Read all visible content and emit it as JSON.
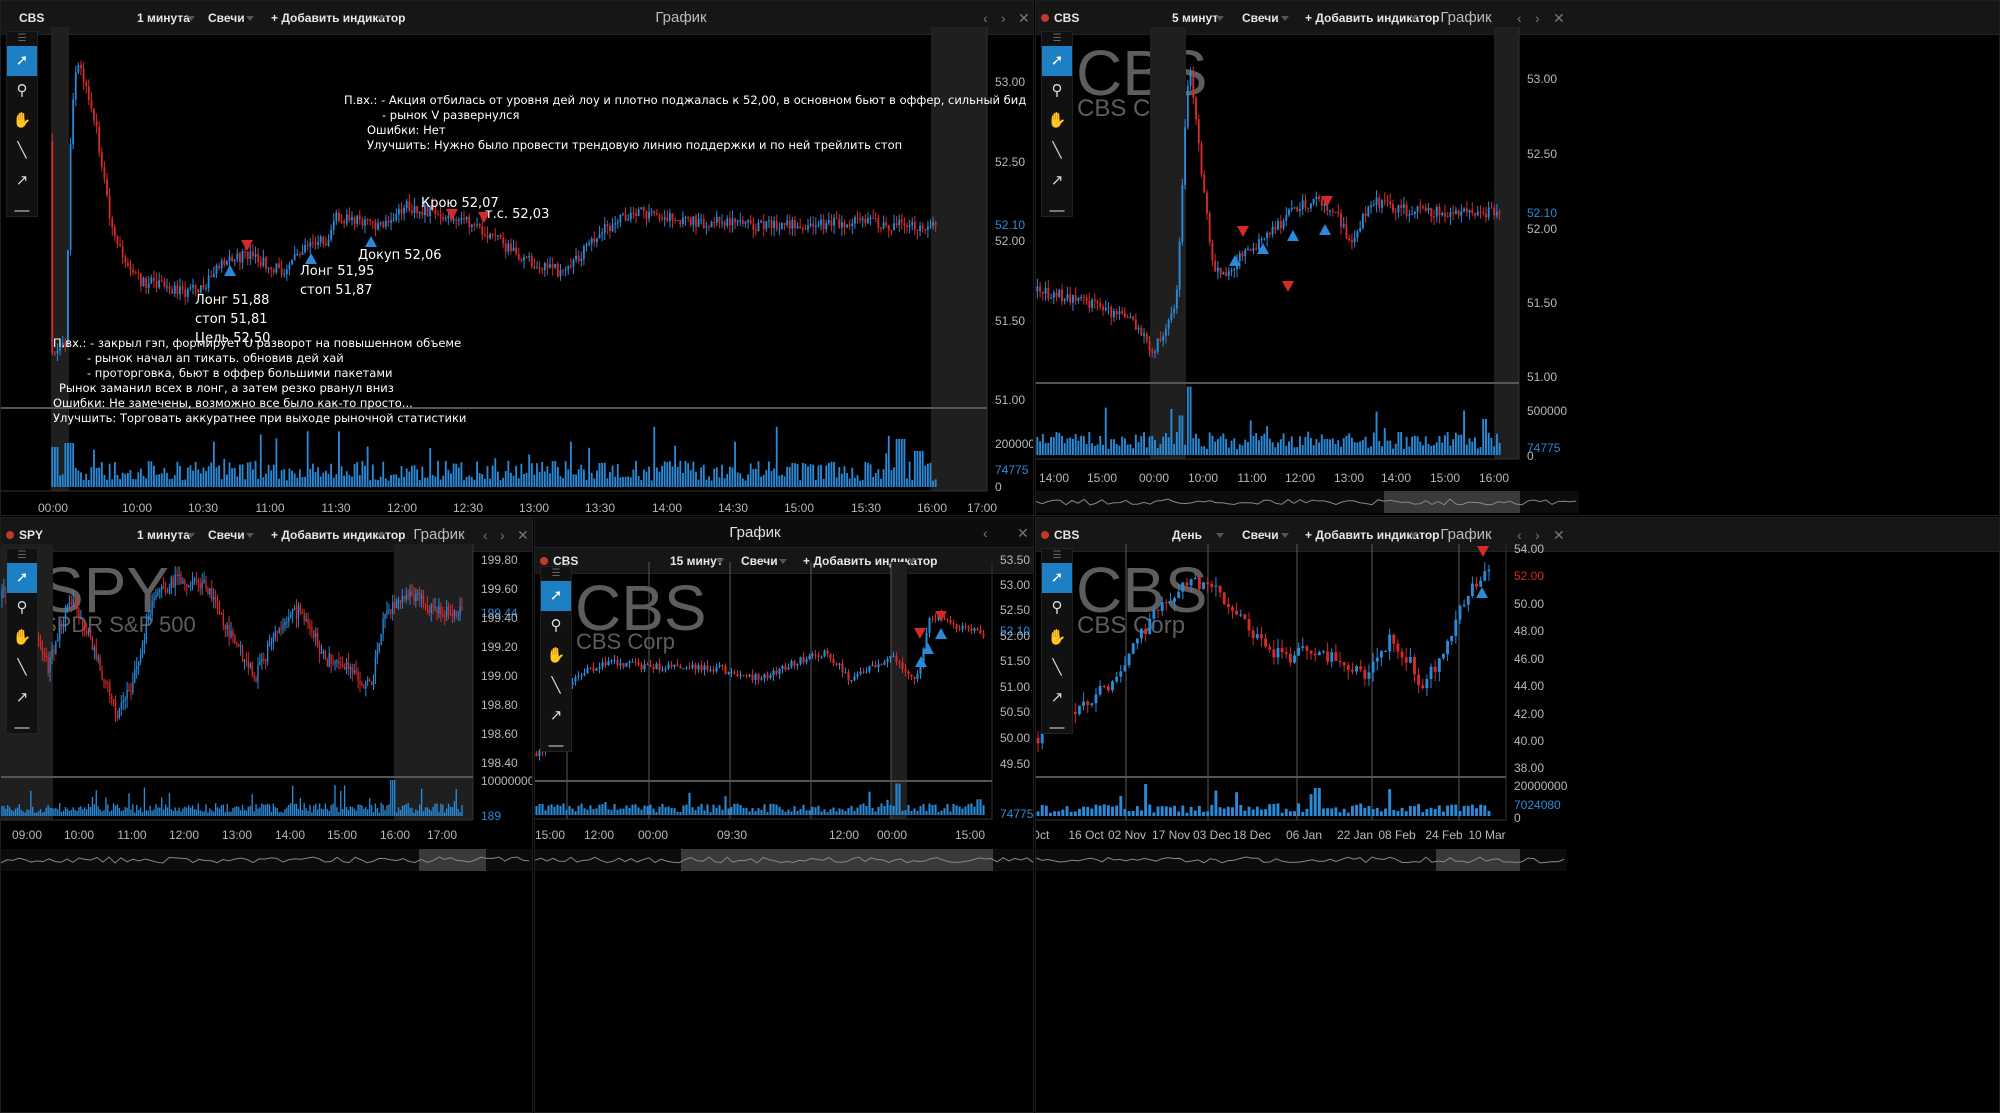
{
  "panels": {
    "p1": {
      "symbol": "CBS",
      "interval": "1 минута",
      "chart_type": "Свечи",
      "add_indicator": "+ Добавить индикатор",
      "title": "График",
      "price_ticks": [
        "53.00",
        "52.50",
        "52.10",
        "52.00",
        "51.50",
        "51.00"
      ],
      "volume_ticks": [
        "200000",
        "74775",
        "0"
      ],
      "time_ticks": [
        "00:00",
        "10:00",
        "10:30",
        "11:00",
        "11:30",
        "12:00",
        "12:30",
        "13:00",
        "13:30",
        "14:00",
        "14:30",
        "15:00",
        "15:30",
        "16:00",
        "17:00"
      ]
    },
    "p2": {
      "symbol": "CBS",
      "interval": "5 минут",
      "chart_type": "Свечи",
      "add_indicator": "+ Добавить индикатор",
      "title": "График",
      "watermark_symbol": "CBS",
      "watermark_name": "CBS Corp",
      "price_ticks": [
        "53.00",
        "52.50",
        "52.10",
        "52.00",
        "51.50",
        "51.00"
      ],
      "volume_ticks": [
        "500000",
        "74775",
        "0"
      ],
      "time_ticks": [
        "14:00",
        "15:00",
        "00:00",
        "10:00",
        "11:00",
        "12:00",
        "13:00",
        "14:00",
        "15:00",
        "16:00"
      ]
    },
    "p3": {
      "symbol": "SPY",
      "interval": "1 минута",
      "chart_type": "Свечи",
      "add_indicator": "+ Добавить индикатор",
      "title": "График",
      "watermark_symbol": "SPY",
      "watermark_name": "SPDR S&P 500",
      "price_ticks": [
        "199.80",
        "199.60",
        "199.44",
        "199.40",
        "199.20",
        "199.00",
        "198.80",
        "198.60",
        "198.40"
      ],
      "volume_ticks": [
        "10000000",
        "189"
      ],
      "time_ticks": [
        "09:00",
        "10:00",
        "11:00",
        "12:00",
        "13:00",
        "14:00",
        "15:00",
        "16:00",
        "17:00"
      ]
    },
    "p4": {
      "outer_title": "График",
      "symbol": "CBS",
      "interval": "15 минут",
      "chart_type": "Свечи",
      "add_indicator": "+ Добавить индикатор",
      "watermark_symbol": "CBS",
      "watermark_name": "CBS Corp",
      "price_ticks": [
        "53.50",
        "53.00",
        "52.50",
        "52.10",
        "52.00",
        "51.50",
        "51.00",
        "50.50",
        "50.00",
        "49.50"
      ],
      "volume_ticks": [
        "74775"
      ],
      "time_ticks": [
        "15:00",
        "12:00",
        "00:00",
        "09:30",
        "12:00",
        "00:00",
        "15:00"
      ]
    },
    "p5": {
      "symbol": "CBS",
      "interval": "День",
      "chart_type": "Свечи",
      "add_indicator": "+ Добавить индикатор",
      "title": "График",
      "watermark_symbol": "CBS",
      "watermark_name": "CBS Corp",
      "price_ticks": [
        "54.00",
        "52.00",
        "50.00",
        "48.00",
        "46.00",
        "44.00",
        "42.00",
        "40.00",
        "38.00"
      ],
      "volume_ticks": [
        "20000000",
        "7024080",
        "0"
      ],
      "time_ticks": [
        "Oct",
        "16 Oct",
        "02 Nov",
        "17 Nov",
        "03 Dec",
        "18 Dec",
        "06 Jan",
        "22 Jan",
        "08 Feb",
        "24 Feb",
        "10 Mar"
      ]
    }
  },
  "annotations": {
    "trade1": [
      "Лонг 51,88",
      "стоп 51,81",
      "Цель 52,50"
    ],
    "trade2": [
      "Лонг 51,95",
      "стоп 51,87"
    ],
    "add": "Докуп 52,06",
    "cover": "Крою 52,07",
    "ts": "т.с. 52,03",
    "note_top": [
      "П.вх.: - Акция отбилась от уровня дей лоу и плотно поджалась к 52,00, в основном бьют в оффер, сильный бид",
      "- рынок V развернулся",
      "Ошибки: Нет",
      "Улучшить: Нужно было провести трендовую линию поддержки и по ней трейлить стоп"
    ],
    "note_bottom": [
      "П.вх.: - закрыл гэп, формирует U разворот на повышенном объеме",
      "- рынок начал ап тикать. обновив дей хай",
      "- проторговка, бьют в оффер большими пакетами",
      "Рынок заманил всех в лонг, а затем резко рванул вниз",
      "Ошибки: Не замечены, возможно все было как-то просто...",
      "Улучшить: Торговать аккуратнее при выходе рыночной статистики"
    ]
  },
  "toolbar": [
    "cursor-icon",
    "zoom-icon",
    "hand-icon",
    "line-icon",
    "arrow-icon",
    "hline-icon",
    "rect-icon"
  ],
  "colors": {
    "up": "#2a8ad8",
    "down": "#d42a2a",
    "bg": "#000000",
    "header": "#161616"
  }
}
